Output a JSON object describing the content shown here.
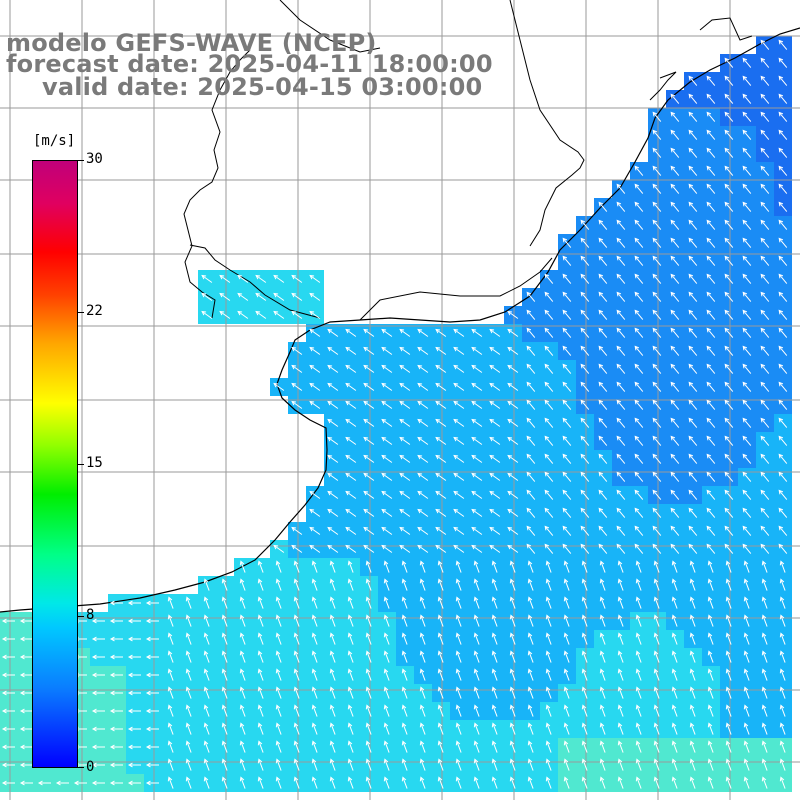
{
  "title": {
    "line1": "modelo GEFS-WAVE (NCEP)",
    "line2": "forecast date: 2025-04-11 18:00:00",
    "line3": "valid date: 2025-04-15 03:00:00"
  },
  "colorbar": {
    "unit": "[m/s]",
    "ticks": [
      "30",
      "22",
      "15",
      "8",
      "0"
    ],
    "tick_values": [
      30,
      22,
      15,
      8,
      0
    ],
    "min": 0,
    "max": 30,
    "colors": [
      "#0000ff",
      "#0a7dff",
      "#00c8ff",
      "#00e8e8",
      "#00ff88",
      "#00ee00",
      "#90ff00",
      "#ffff00",
      "#ffa500",
      "#ff4000",
      "#ff0000",
      "#c0007a"
    ]
  },
  "map": {
    "land_color": "#ffffff",
    "grid_color": "#9a9a9a",
    "coast_color": "#000000",
    "arrow_color": "#ffffff",
    "field_colors": [
      "#1a6ef0",
      "#1a8cf5",
      "#18b4f8",
      "#28d8f0",
      "#50e8d0"
    ]
  }
}
